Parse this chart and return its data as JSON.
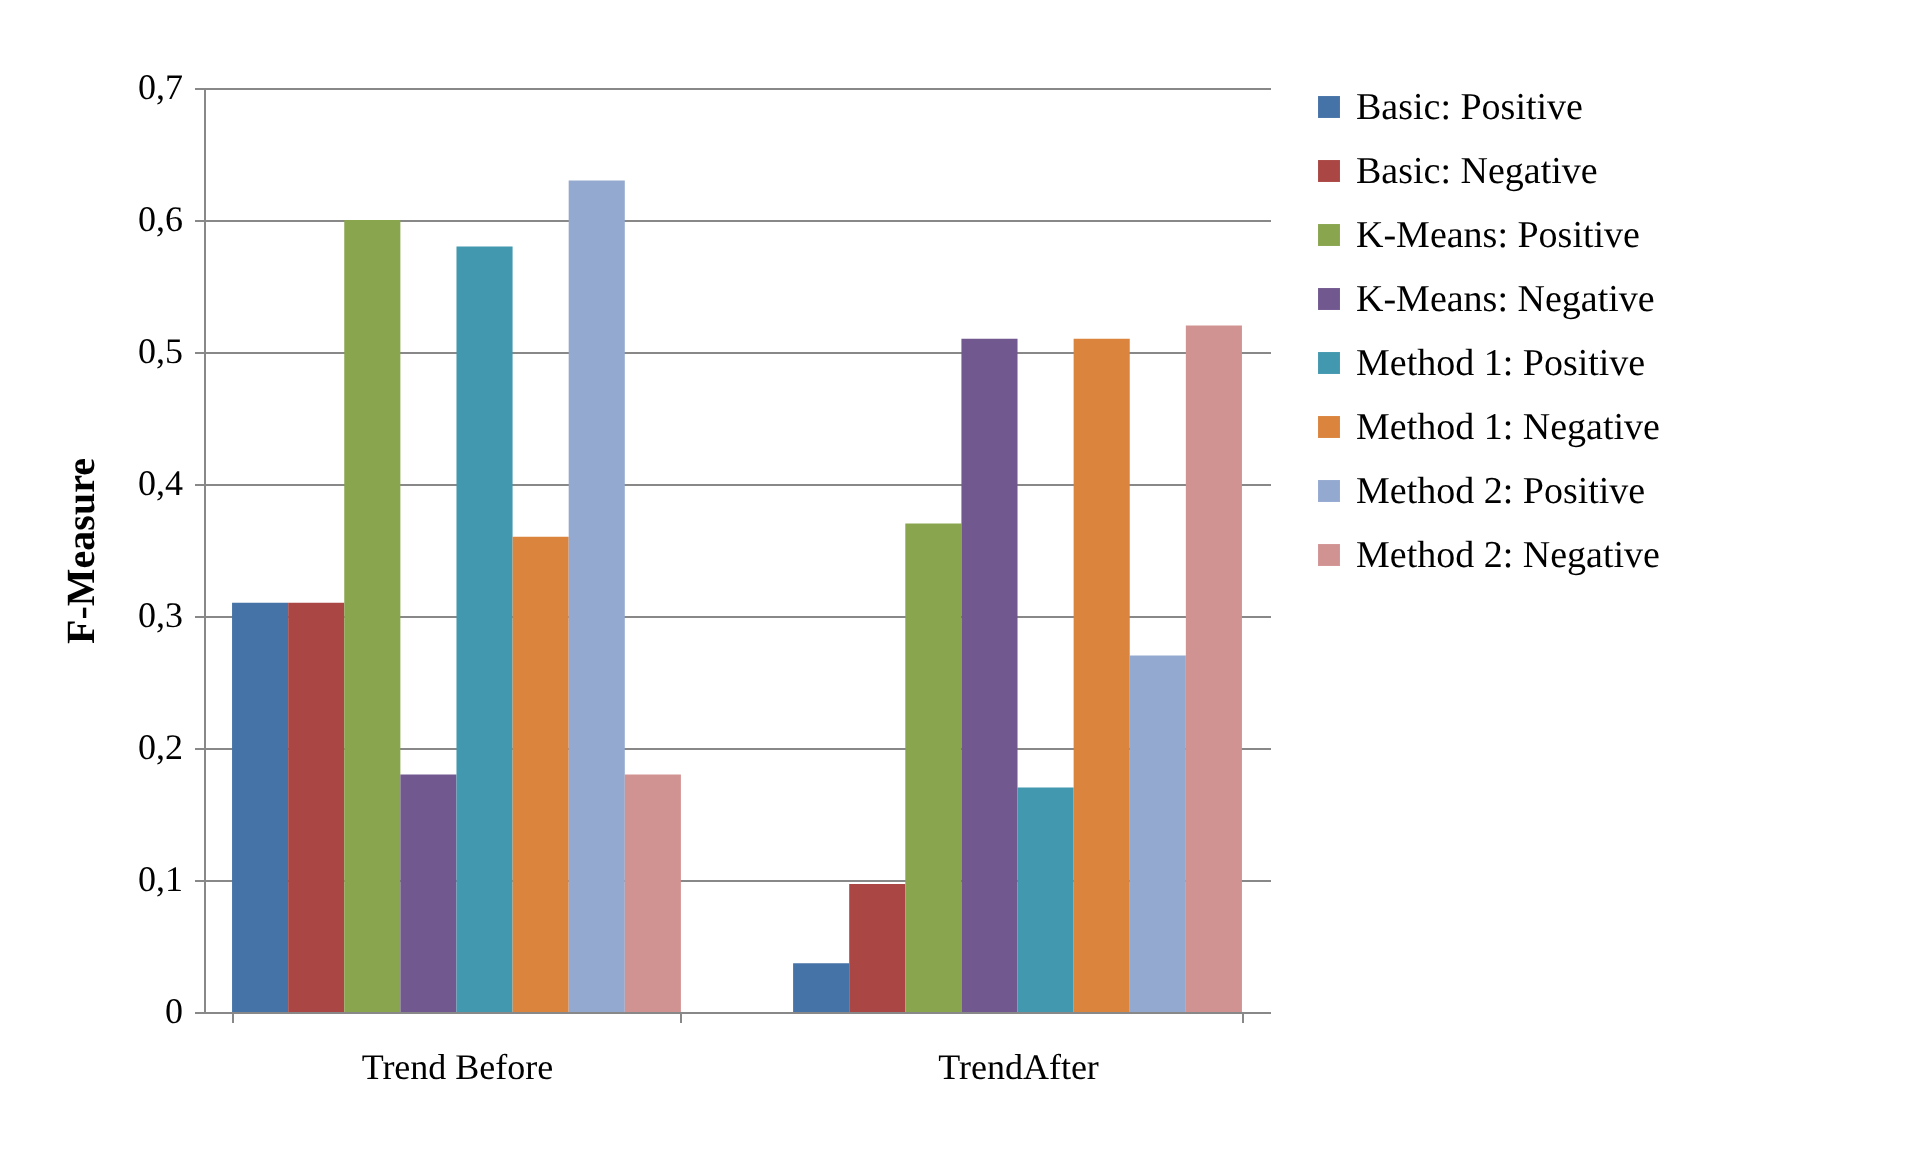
{
  "chart_data": {
    "type": "bar",
    "ylabel": "F-Measure",
    "categories": [
      "Trend Before",
      "TrendAfter"
    ],
    "series": [
      {
        "name": "Basic: Positive",
        "color": "#4572a7",
        "values": [
          0.31,
          0.037
        ]
      },
      {
        "name": "Basic: Negative",
        "color": "#aa4643",
        "values": [
          0.31,
          0.097
        ]
      },
      {
        "name": "K-Means: Positive",
        "color": "#89a54e",
        "values": [
          0.6,
          0.37
        ]
      },
      {
        "name": "K-Means: Negative",
        "color": "#71588f",
        "values": [
          0.18,
          0.51
        ]
      },
      {
        "name": "Method 1: Positive",
        "color": "#4198af",
        "values": [
          0.58,
          0.17
        ]
      },
      {
        "name": "Method 1: Negative",
        "color": "#db843d",
        "values": [
          0.36,
          0.51
        ]
      },
      {
        "name": "Method 2: Positive",
        "color": "#93a9cf",
        "values": [
          0.63,
          0.27
        ]
      },
      {
        "name": "Method 2: Negative",
        "color": "#d19392",
        "values": [
          0.18,
          0.52
        ]
      }
    ],
    "ylim": [
      0,
      0.7
    ],
    "yticks": [
      0,
      {
        "value": 0.1,
        "label": "0,1"
      },
      {
        "value": 0.2,
        "label": "0,2"
      },
      {
        "value": 0.3,
        "label": "0,3"
      },
      {
        "value": 0.4,
        "label": "0,4"
      },
      {
        "value": 0.5,
        "label": "0,5"
      },
      {
        "value": 0.6,
        "label": "0,6"
      },
      {
        "value": 0.7,
        "label": "0,7"
      }
    ],
    "grid": "y",
    "legend": "right"
  }
}
